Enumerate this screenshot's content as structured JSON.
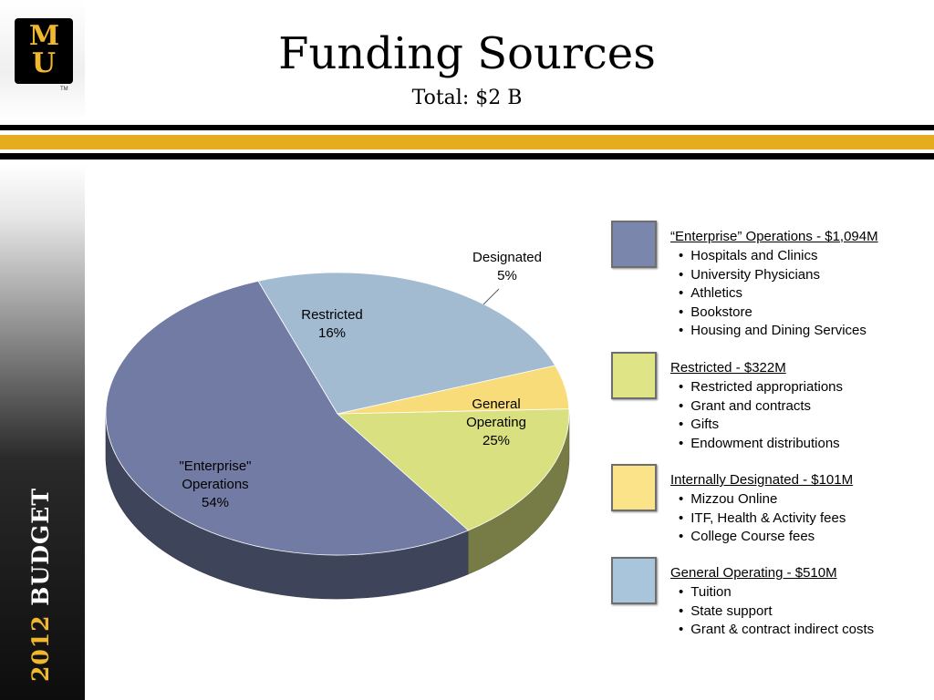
{
  "header": {
    "title": "Funding Sources",
    "subtitle": "Total: $2 B"
  },
  "branding": {
    "logo_m": "M",
    "logo_u": "U",
    "logo_tm": "TM",
    "side_year": "2012",
    "side_word": "BUDGET",
    "gold": "#f1b82d",
    "black": "#000000"
  },
  "chart_data": {
    "type": "pie",
    "title": "Funding Sources",
    "subtitle": "Total: $2 B",
    "slices": [
      {
        "name": "\"Enterprise\" Operations",
        "value": 54,
        "label_lines": [
          "\"Enterprise\"",
          "Operations",
          "54%"
        ],
        "color": "#717ba3"
      },
      {
        "name": "Restricted",
        "value": 16,
        "label_lines": [
          "Restricted",
          "16%"
        ],
        "color": "#d8e07f"
      },
      {
        "name": "Designated",
        "value": 5,
        "label_lines": [
          "Designated",
          "5%"
        ],
        "color": "#f9dc7a"
      },
      {
        "name": "General Operating",
        "value": 25,
        "label_lines": [
          "General",
          "Operating",
          "25%"
        ],
        "color": "#a2bbd1"
      }
    ]
  },
  "legend": [
    {
      "heading": "“Enterprise” Operations - $1,094M",
      "color": "#7b86ac",
      "items": [
        "Hospitals and Clinics",
        "University Physicians",
        "Athletics",
        "Bookstore",
        "Housing and Dining Services"
      ]
    },
    {
      "heading": "Restricted - $322M",
      "color": "#dfe486",
      "items": [
        "Restricted appropriations",
        "Grant and contracts",
        "Gifts",
        "Endowment distributions"
      ]
    },
    {
      "heading": "Internally Designated - $101M",
      "color": "#fbe38a",
      "items": [
        "Mizzou Online",
        "ITF, Health & Activity fees",
        "College Course fees"
      ]
    },
    {
      "heading": "General Operating - $510M",
      "color": "#a9c5dc",
      "items": [
        "Tuition",
        "State support",
        "Grant & contract indirect costs"
      ]
    }
  ]
}
